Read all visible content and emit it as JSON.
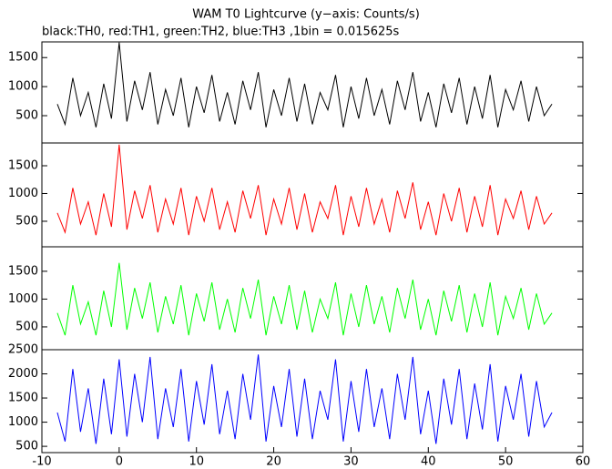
{
  "chart_data": [
    {
      "type": "line",
      "title": "WAM T0 Lightcurve (y−axis: Counts/s)",
      "subtitle": "black:TH0, red:TH1, green:TH2, blue:TH3 ,1bin = 0.015625s",
      "x": [
        -8,
        -7,
        -6,
        -5,
        -4,
        -3,
        -2,
        -1,
        0,
        1,
        2,
        3,
        4,
        5,
        6,
        7,
        8,
        9,
        10,
        11,
        12,
        13,
        14,
        15,
        16,
        17,
        18,
        19,
        20,
        21,
        22,
        23,
        24,
        25,
        26,
        27,
        28,
        29,
        30,
        31,
        32,
        33,
        34,
        35,
        36,
        37,
        38,
        39,
        40,
        41,
        42,
        43,
        44,
        45,
        46,
        47,
        48,
        49,
        50,
        51,
        52,
        53,
        54,
        55,
        56
      ],
      "series": [
        {
          "name": "TH0",
          "color": "#000000",
          "values": [
            700,
            350,
            1150,
            500,
            900,
            300,
            1050,
            450,
            1760,
            400,
            1100,
            600,
            1250,
            350,
            950,
            500,
            1150,
            300,
            1000,
            550,
            1200,
            400,
            900,
            350,
            1100,
            600,
            1250,
            300,
            950,
            500,
            1150,
            400,
            1050,
            350,
            900,
            600,
            1200,
            300,
            1000,
            450,
            1150,
            500,
            950,
            350,
            1100,
            600,
            1250,
            400,
            900,
            300,
            1050,
            550,
            1150,
            350,
            1000,
            450,
            1200,
            300,
            950,
            600,
            1100,
            400,
            1000,
            500,
            700
          ]
        }
      ],
      "ylim": [
        30,
        1770
      ],
      "yticks": [
        500,
        1000,
        1500
      ]
    },
    {
      "type": "line",
      "x": [
        -8,
        -7,
        -6,
        -5,
        -4,
        -3,
        -2,
        -1,
        0,
        1,
        2,
        3,
        4,
        5,
        6,
        7,
        8,
        9,
        10,
        11,
        12,
        13,
        14,
        15,
        16,
        17,
        18,
        19,
        20,
        21,
        22,
        23,
        24,
        25,
        26,
        27,
        28,
        29,
        30,
        31,
        32,
        33,
        34,
        35,
        36,
        37,
        38,
        39,
        40,
        41,
        42,
        43,
        44,
        45,
        46,
        47,
        48,
        49,
        50,
        51,
        52,
        53,
        54,
        55,
        56
      ],
      "series": [
        {
          "name": "TH1",
          "color": "#ff0000",
          "values": [
            650,
            300,
            1100,
            450,
            850,
            250,
            1000,
            400,
            1880,
            350,
            1050,
            550,
            1150,
            300,
            900,
            450,
            1100,
            250,
            950,
            500,
            1100,
            350,
            850,
            300,
            1050,
            550,
            1150,
            250,
            900,
            450,
            1100,
            350,
            1000,
            300,
            850,
            550,
            1150,
            250,
            950,
            400,
            1100,
            450,
            900,
            300,
            1050,
            550,
            1200,
            350,
            850,
            250,
            1000,
            500,
            1100,
            300,
            950,
            400,
            1150,
            250,
            900,
            550,
            1050,
            350,
            950,
            450,
            650
          ]
        }
      ],
      "ylim": [
        40,
        1910
      ],
      "yticks": [
        500,
        1000,
        1500
      ]
    },
    {
      "type": "line",
      "x": [
        -8,
        -7,
        -6,
        -5,
        -4,
        -3,
        -2,
        -1,
        0,
        1,
        2,
        3,
        4,
        5,
        6,
        7,
        8,
        9,
        10,
        11,
        12,
        13,
        14,
        15,
        16,
        17,
        18,
        19,
        20,
        21,
        22,
        23,
        24,
        25,
        26,
        27,
        28,
        29,
        30,
        31,
        32,
        33,
        34,
        35,
        36,
        37,
        38,
        39,
        40,
        41,
        42,
        43,
        44,
        45,
        46,
        47,
        48,
        49,
        50,
        51,
        52,
        53,
        54,
        55,
        56
      ],
      "series": [
        {
          "name": "TH2",
          "color": "#00ff00",
          "values": [
            750,
            350,
            1250,
            550,
            950,
            350,
            1150,
            500,
            1650,
            450,
            1200,
            650,
            1300,
            400,
            1050,
            550,
            1250,
            350,
            1100,
            600,
            1300,
            450,
            1000,
            400,
            1200,
            650,
            1350,
            350,
            1050,
            550,
            1250,
            450,
            1150,
            400,
            1000,
            650,
            1300,
            350,
            1100,
            500,
            1250,
            550,
            1050,
            400,
            1200,
            650,
            1350,
            450,
            1000,
            350,
            1150,
            600,
            1250,
            400,
            1100,
            500,
            1300,
            350,
            1050,
            650,
            1200,
            450,
            1100,
            550,
            750
          ]
        }
      ],
      "ylim": [
        90,
        1940
      ],
      "yticks": [
        500,
        1000,
        1500
      ]
    },
    {
      "type": "line",
      "x": [
        -8,
        -7,
        -6,
        -5,
        -4,
        -3,
        -2,
        -1,
        0,
        1,
        2,
        3,
        4,
        5,
        6,
        7,
        8,
        9,
        10,
        11,
        12,
        13,
        14,
        15,
        16,
        17,
        18,
        19,
        20,
        21,
        22,
        23,
        24,
        25,
        26,
        27,
        28,
        29,
        30,
        31,
        32,
        33,
        34,
        35,
        36,
        37,
        38,
        39,
        40,
        41,
        42,
        43,
        44,
        45,
        46,
        47,
        48,
        49,
        50,
        51,
        52,
        53,
        54,
        55,
        56
      ],
      "series": [
        {
          "name": "TH3",
          "color": "#0000ff",
          "values": [
            1200,
            600,
            2100,
            800,
            1700,
            550,
            1900,
            750,
            2300,
            700,
            2000,
            1000,
            2350,
            650,
            1700,
            900,
            2100,
            600,
            1850,
            950,
            2200,
            750,
            1650,
            650,
            2000,
            1050,
            2400,
            600,
            1750,
            900,
            2100,
            700,
            1900,
            650,
            1650,
            1050,
            2300,
            600,
            1850,
            800,
            2100,
            900,
            1700,
            650,
            2000,
            1050,
            2350,
            750,
            1650,
            550,
            1900,
            950,
            2100,
            650,
            1800,
            850,
            2200,
            600,
            1750,
            1050,
            2000,
            700,
            1850,
            900,
            1200
          ]
        }
      ],
      "ylim": [
        370,
        2500
      ],
      "yticks": [
        500,
        1000,
        1500,
        2000,
        2500
      ],
      "xlim": [
        -10,
        60
      ],
      "xticks": [
        -10,
        0,
        10,
        20,
        30,
        40,
        50,
        60
      ]
    }
  ]
}
